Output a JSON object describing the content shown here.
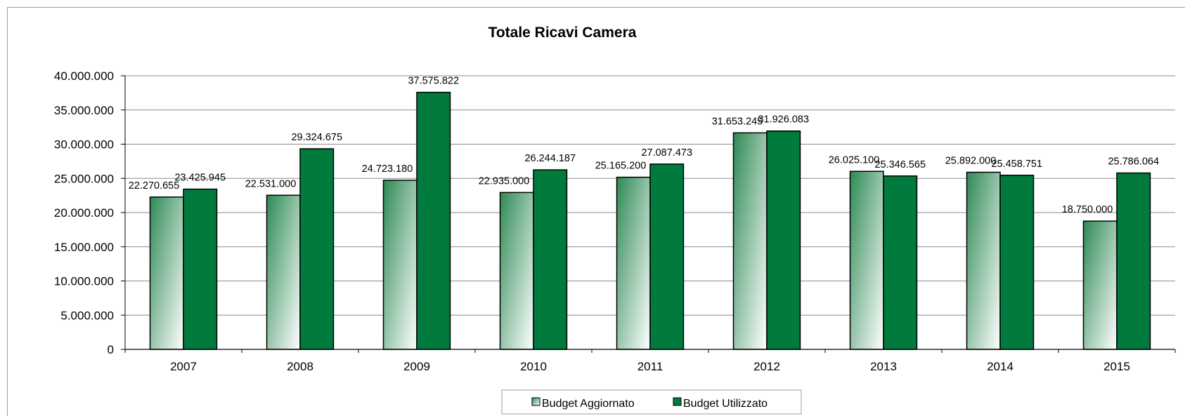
{
  "chart_data": {
    "type": "bar",
    "title": "Totale Ricavi Camera",
    "categories": [
      "2007",
      "2008",
      "2009",
      "2010",
      "2011",
      "2012",
      "2013",
      "2014",
      "2015"
    ],
    "series": [
      {
        "name": "Budget Aggiornato",
        "values": [
          22270655,
          22531000,
          24723180,
          22935000,
          25165200,
          31653245,
          26025100,
          25892000,
          18750000
        ],
        "labels": [
          "22.270.655",
          "22.531.000",
          "24.723.180",
          "22.935.000",
          "25.165.200",
          "31.653.245",
          "26.025.100",
          "25.892.000",
          "18.750.000"
        ],
        "color": "#4e9e6e",
        "style": "gradient"
      },
      {
        "name": "Budget Utilizzato",
        "values": [
          23425945,
          29324675,
          37575822,
          26244187,
          27087473,
          31926083,
          25346565,
          25458751,
          25786064
        ],
        "labels": [
          "23.425.945",
          "29.324.675",
          "37.575.822",
          "26.244.187",
          "27.087.473",
          "31.926.083",
          "25.346.565",
          "25.458.751",
          "25.786.064"
        ],
        "color": "#007a3d",
        "style": "solid"
      }
    ],
    "ylim": [
      0,
      40000000
    ],
    "yticks": [
      "0",
      "5.000.000",
      "10.000.000",
      "15.000.000",
      "20.000.000",
      "25.000.000",
      "30.000.000",
      "35.000.000",
      "40.000.000"
    ],
    "xlabel": "",
    "ylabel": "",
    "grid": true,
    "legend_position": "bottom"
  }
}
